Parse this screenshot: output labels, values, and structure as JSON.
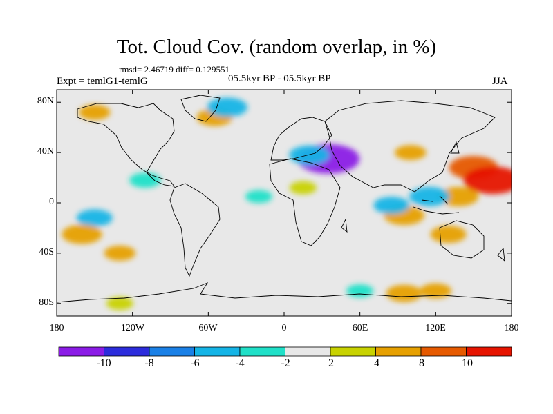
{
  "title": "Tot. Cloud Cov. (random overlap, in %)",
  "stats": "rmsd= 2.46719 diff= 0.129551",
  "experiment": "Expt = temlG1-temlG",
  "period": "05.5kyr BP - 05.5kyr BP",
  "season": "JJA",
  "lat_labels": [
    "80N",
    "40N",
    "0",
    "40S",
    "80S"
  ],
  "lon_labels": [
    "180",
    "120W",
    "60W",
    "0",
    "60E",
    "120E",
    "180"
  ],
  "colorbar": {
    "labels": [
      "-10",
      "-8",
      "-6",
      "-4",
      "-2",
      "2",
      "4",
      "8",
      "10"
    ],
    "colors": [
      "#8b1ce6",
      "#2c2cdc",
      "#1a80e6",
      "#14b4e6",
      "#20e0c8",
      "#e8e8e8",
      "#c8d200",
      "#e6a000",
      "#e65a00",
      "#e61400"
    ]
  },
  "chart_data": {
    "type": "heatmap",
    "title": "Tot. Cloud Cov. (random overlap, in %)",
    "variable": "Total cloud cover difference",
    "units": "%",
    "x_range": [
      -180,
      180
    ],
    "y_range": [
      -90,
      90
    ],
    "contour_levels": [
      -10,
      -8,
      -6,
      -4,
      -2,
      2,
      4,
      8,
      10
    ],
    "anomalies": [
      {
        "lon": 138,
        "lat": 5,
        "value": 6
      },
      {
        "lon": 150,
        "lat": 28,
        "value": 8
      },
      {
        "lon": 165,
        "lat": 18,
        "value": 10
      },
      {
        "lon": 95,
        "lat": -10,
        "value": 6
      },
      {
        "lon": 130,
        "lat": -25,
        "value": 5
      },
      {
        "lon": 115,
        "lat": 5,
        "value": -6
      },
      {
        "lon": 85,
        "lat": -2,
        "value": -5
      },
      {
        "lon": 35,
        "lat": 35,
        "value": -11
      },
      {
        "lon": 20,
        "lat": 38,
        "value": -6
      },
      {
        "lon": -150,
        "lat": -12,
        "value": -5
      },
      {
        "lon": -110,
        "lat": 18,
        "value": -4
      },
      {
        "lon": -160,
        "lat": -25,
        "value": 6
      },
      {
        "lon": -130,
        "lat": -40,
        "value": 4
      },
      {
        "lon": -55,
        "lat": 68,
        "value": 5
      },
      {
        "lon": -45,
        "lat": 76,
        "value": -6
      },
      {
        "lon": 95,
        "lat": -72,
        "value": 5
      },
      {
        "lon": 120,
        "lat": -70,
        "value": 4
      },
      {
        "lon": 60,
        "lat": -70,
        "value": -3
      },
      {
        "lon": -130,
        "lat": -80,
        "value": 3
      },
      {
        "lon": -150,
        "lat": 72,
        "value": 4
      },
      {
        "lon": 100,
        "lat": 40,
        "value": 4
      },
      {
        "lon": 15,
        "lat": 12,
        "value": 3
      },
      {
        "lon": -20,
        "lat": 5,
        "value": -3
      }
    ]
  }
}
